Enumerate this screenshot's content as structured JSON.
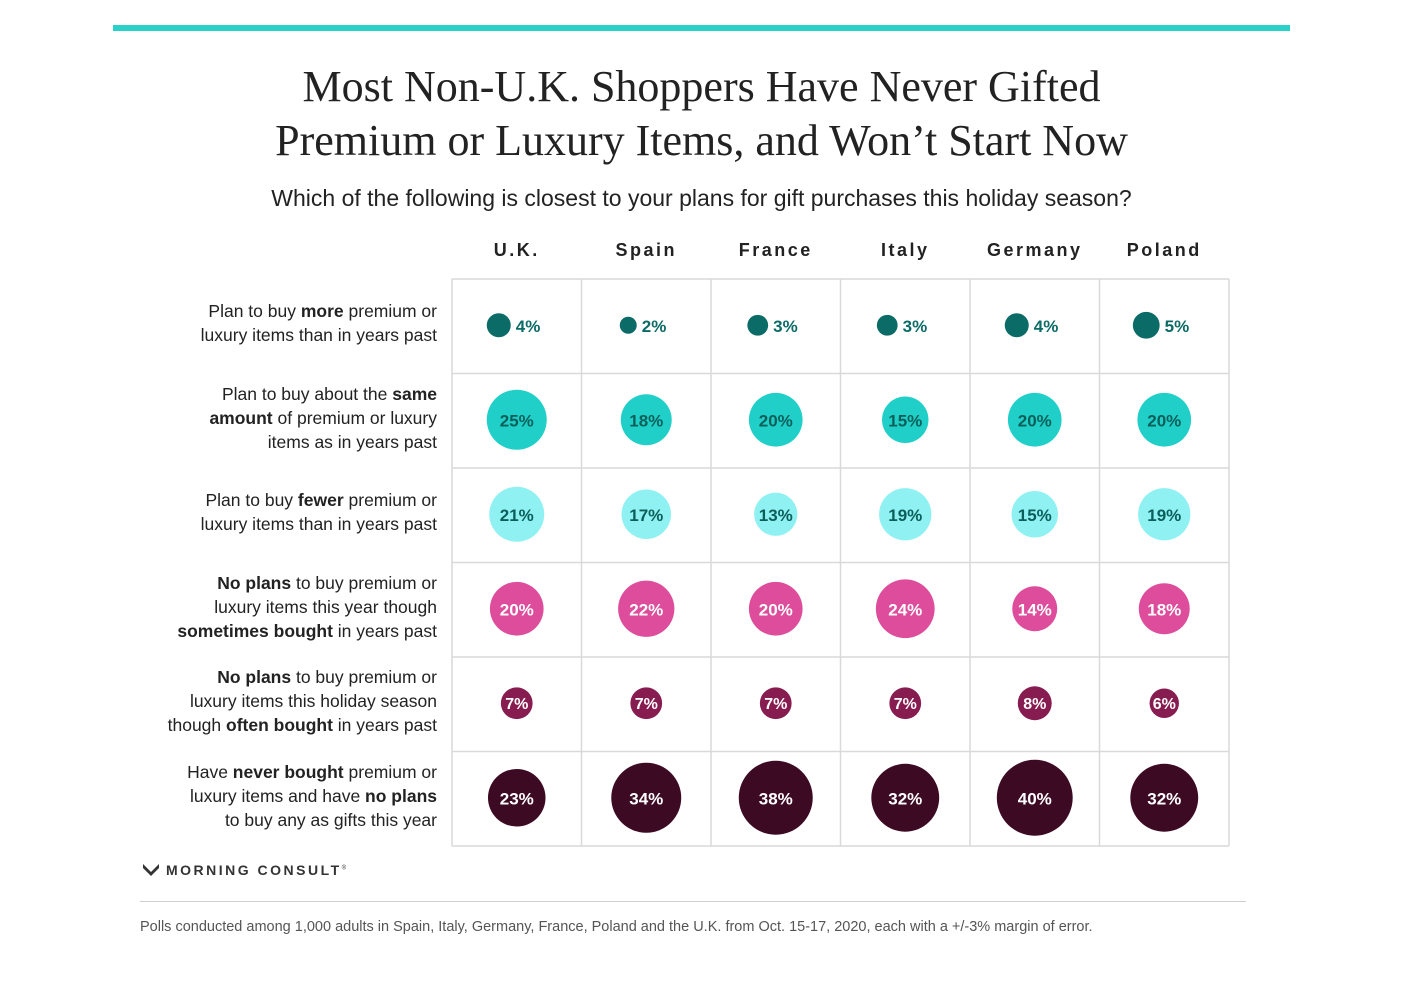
{
  "title_line1": "Most Non-U.K. Shoppers Have Never Gifted",
  "title_line2": "Premium or Luxury Items, and Won’t Start Now",
  "subtitle": "Which of the following is closest to your plans for gift purchases this holiday season?",
  "logo_text": "MORNING CONSULT",
  "logo_mark": "®",
  "footnote": "Polls conducted among 1,000 adults in Spain, Italy, Germany, France, Poland and the U.K. from Oct. 15-17, 2020, each with a +/-3% margin of error.",
  "chart_data": {
    "type": "table",
    "encoding": "bubble-size",
    "columns": [
      "U.K.",
      "Spain",
      "France",
      "Italy",
      "Germany",
      "Poland"
    ],
    "rows": [
      {
        "label_parts": [
          {
            "t": "Plan to buy ",
            "b": false
          },
          {
            "t": "more",
            "b": true
          },
          {
            "t": " premium or\nluxury items than in years past",
            "b": false
          }
        ],
        "color": "#0b6b66",
        "text_color": "#0b6b66",
        "label_inside": false,
        "values": [
          4,
          2,
          3,
          3,
          4,
          5
        ]
      },
      {
        "label_parts": [
          {
            "t": "Plan to buy about the ",
            "b": false
          },
          {
            "t": "same\namount",
            "b": true
          },
          {
            "t": " of premium or luxury\nitems as in years past",
            "b": false
          }
        ],
        "color": "#20d0c8",
        "text_color": "#0b5f5b",
        "label_inside": true,
        "values": [
          25,
          18,
          20,
          15,
          20,
          20
        ]
      },
      {
        "label_parts": [
          {
            "t": "Plan to buy ",
            "b": false
          },
          {
            "t": "fewer",
            "b": true
          },
          {
            "t": " premium or\nluxury items than in years past",
            "b": false
          }
        ],
        "color": "#8ff1f1",
        "text_color": "#0b5f5b",
        "label_inside": true,
        "values": [
          21,
          17,
          13,
          19,
          15,
          19
        ]
      },
      {
        "label_parts": [
          {
            "t": "No plans",
            "b": true
          },
          {
            "t": " to buy premium or\nluxury items this year though\n",
            "b": false
          },
          {
            "t": "sometimes bought",
            "b": true
          },
          {
            "t": " in years past",
            "b": false
          }
        ],
        "color": "#de4d9b",
        "text_color": "#ffffff",
        "label_inside": true,
        "values": [
          20,
          22,
          20,
          24,
          14,
          18
        ]
      },
      {
        "label_parts": [
          {
            "t": "No plans",
            "b": true
          },
          {
            "t": " to buy premium or\nluxury items this holiday season\nthough ",
            "b": false
          },
          {
            "t": "often bought",
            "b": true
          },
          {
            "t": " in years past",
            "b": false
          }
        ],
        "color": "#861c4f",
        "text_color": "#ffffff",
        "label_inside": true,
        "values": [
          7,
          7,
          7,
          7,
          8,
          6
        ]
      },
      {
        "label_parts": [
          {
            "t": "Have ",
            "b": false
          },
          {
            "t": "never bought",
            "b": true
          },
          {
            "t": " premium or\nluxury items and have ",
            "b": false
          },
          {
            "t": "no plans",
            "b": true
          },
          {
            "t": "\nto buy any as gifts this year",
            "b": false
          }
        ],
        "color": "#3d0a24",
        "text_color": "#ffffff",
        "label_inside": true,
        "values": [
          23,
          34,
          38,
          32,
          40,
          32
        ]
      }
    ],
    "value_suffix": "%"
  }
}
